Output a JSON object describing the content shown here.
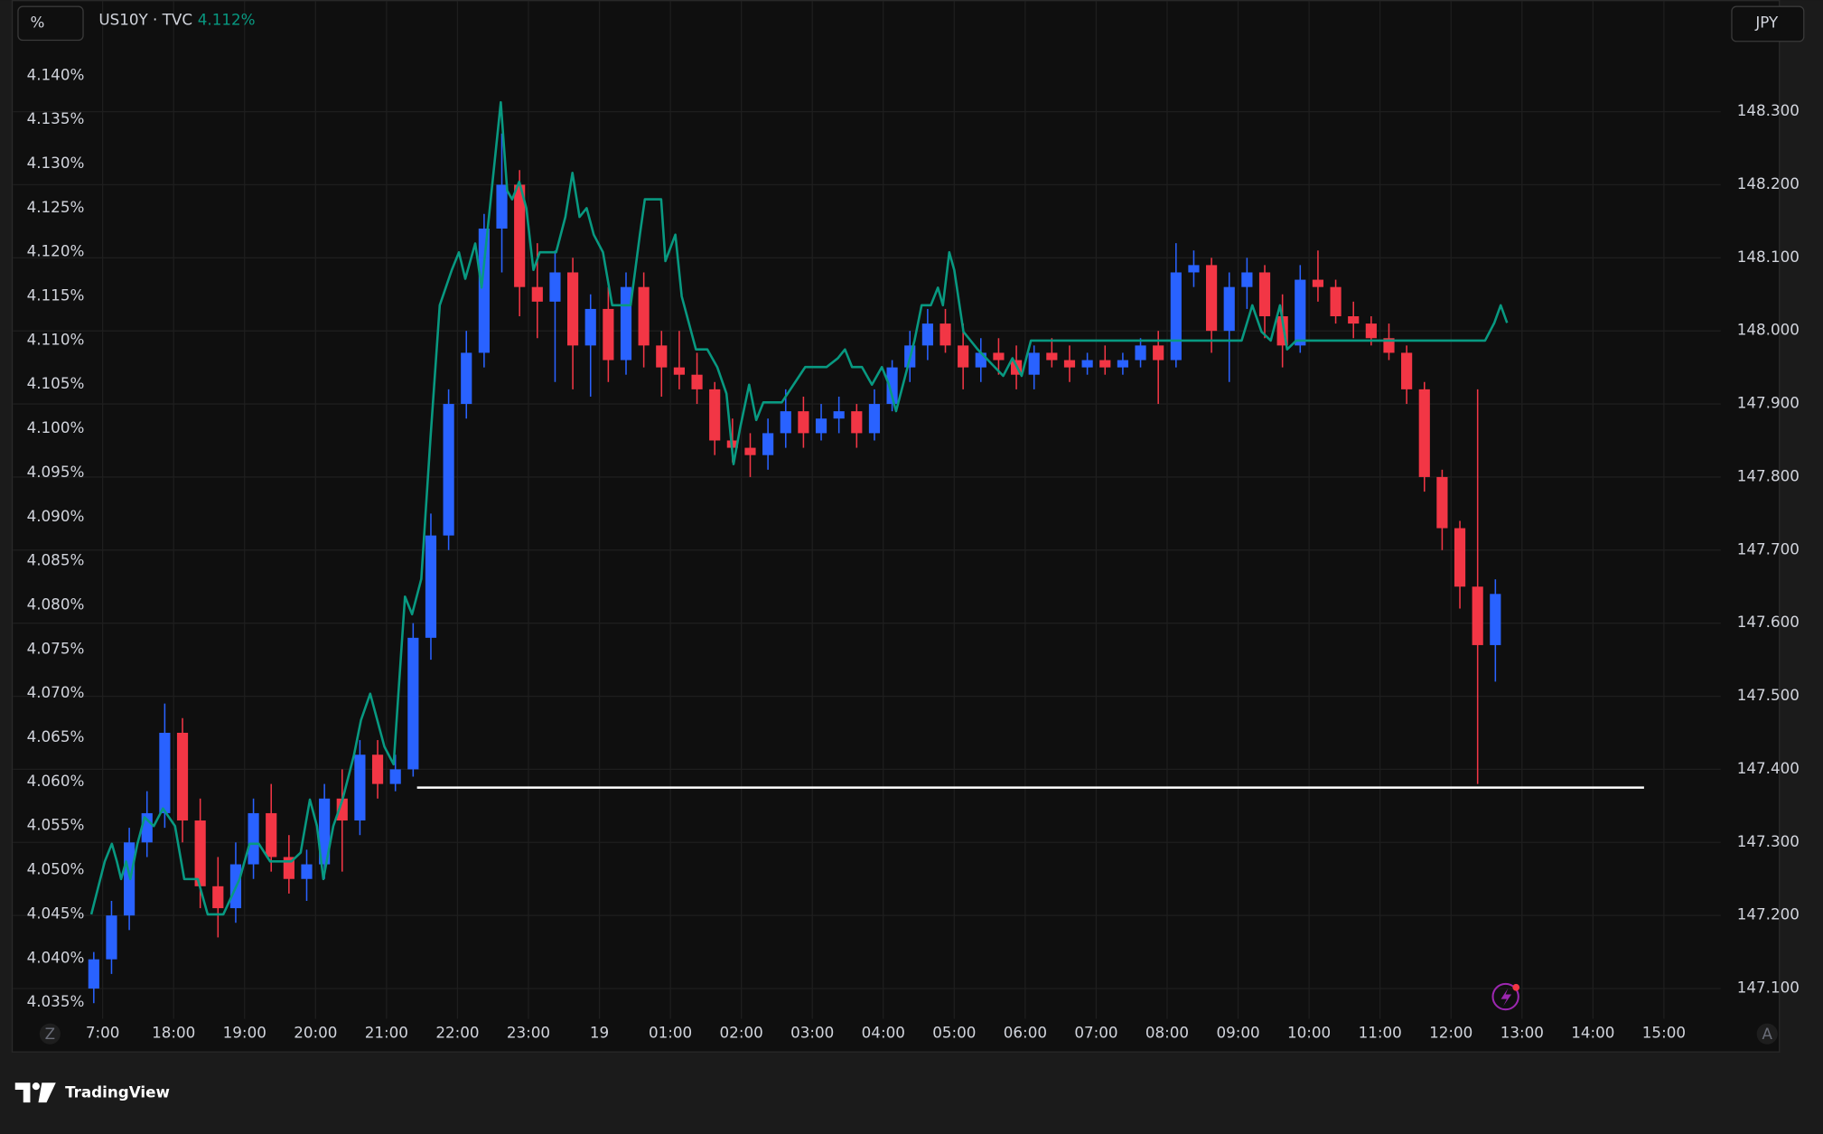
{
  "chart_data": {
    "type": "candlestick",
    "y_unit": "%",
    "y2_unit": "JPY",
    "legend": {
      "text": "US10Y · TVC",
      "value": {
        "value": 4.112,
        "label": "4.112%"
      }
    },
    "grid": true,
    "xlim": [
      -1.25,
      22.8
    ],
    "xticks": [
      {
        "value": 0,
        "label": "7:00"
      },
      {
        "value": 1,
        "label": "18:00"
      },
      {
        "value": 2,
        "label": "19:00"
      },
      {
        "value": 3,
        "label": "20:00"
      },
      {
        "value": 4,
        "label": "21:00"
      },
      {
        "value": 5,
        "label": "22:00"
      },
      {
        "value": 6,
        "label": "23:00"
      },
      {
        "value": 7,
        "label": "19"
      },
      {
        "value": 8,
        "label": "01:00"
      },
      {
        "value": 9,
        "label": "02:00"
      },
      {
        "value": 10,
        "label": "03:00"
      },
      {
        "value": 11,
        "label": "04:00"
      },
      {
        "value": 12,
        "label": "05:00"
      },
      {
        "value": 13,
        "label": "06:00"
      },
      {
        "value": 14,
        "label": "07:00"
      },
      {
        "value": 15,
        "label": "08:00"
      },
      {
        "value": 16,
        "label": "09:00"
      },
      {
        "value": 17,
        "label": "10:00"
      },
      {
        "value": 18,
        "label": "11:00"
      },
      {
        "value": 19,
        "label": "12:00"
      },
      {
        "value": 20,
        "label": "13:00"
      },
      {
        "value": 21,
        "label": "14:00"
      },
      {
        "value": 22,
        "label": "15:00"
      }
    ],
    "ylim": [
      4.0337,
      4.1433
    ],
    "yticks": [
      {
        "value": 4.035,
        "label": "4.035%"
      },
      {
        "value": 4.04,
        "label": "4.040%"
      },
      {
        "value": 4.045,
        "label": "4.045%"
      },
      {
        "value": 4.05,
        "label": "4.050%"
      },
      {
        "value": 4.055,
        "label": "4.055%"
      },
      {
        "value": 4.06,
        "label": "4.060%"
      },
      {
        "value": 4.065,
        "label": "4.065%"
      },
      {
        "value": 4.07,
        "label": "4.070%"
      },
      {
        "value": 4.075,
        "label": "4.075%"
      },
      {
        "value": 4.08,
        "label": "4.080%"
      },
      {
        "value": 4.085,
        "label": "4.085%"
      },
      {
        "value": 4.09,
        "label": "4.090%"
      },
      {
        "value": 4.095,
        "label": "4.095%"
      },
      {
        "value": 4.1,
        "label": "4.100%"
      },
      {
        "value": 4.105,
        "label": "4.105%"
      },
      {
        "value": 4.11,
        "label": "4.110%"
      },
      {
        "value": 4.115,
        "label": "4.115%"
      },
      {
        "value": 4.12,
        "label": "4.120%"
      },
      {
        "value": 4.125,
        "label": "4.125%"
      },
      {
        "value": 4.13,
        "label": "4.130%"
      },
      {
        "value": 4.135,
        "label": "4.135%"
      },
      {
        "value": 4.14,
        "label": "4.140%"
      }
    ],
    "y2lim": [
      147.065,
      148.389
    ],
    "y2ticks": [
      {
        "value": 147.1,
        "label": "147.100"
      },
      {
        "value": 147.2,
        "label": "147.200"
      },
      {
        "value": 147.3,
        "label": "147.300"
      },
      {
        "value": 147.4,
        "label": "147.400"
      },
      {
        "value": 147.5,
        "label": "147.500"
      },
      {
        "value": 147.6,
        "label": "147.600"
      },
      {
        "value": 147.7,
        "label": "147.700"
      },
      {
        "value": 147.8,
        "label": "147.800"
      },
      {
        "value": 147.9,
        "label": "147.900"
      },
      {
        "value": 148.0,
        "label": "148.000"
      },
      {
        "value": 148.1,
        "label": "148.100"
      },
      {
        "value": 148.2,
        "label": "148.200"
      },
      {
        "value": 148.3,
        "label": "148.300"
      }
    ],
    "candles": {
      "axis": "y2",
      "up_color": "#2962ff",
      "down_color": "#f23645",
      "x": [
        -0.125,
        0.125,
        0.375,
        0.625,
        0.875,
        1.125,
        1.375,
        1.625,
        1.875,
        2.125,
        2.375,
        2.625,
        2.875,
        3.125,
        3.375,
        3.625,
        3.875,
        4.125,
        4.375,
        4.625,
        4.875,
        5.125,
        5.375,
        5.625,
        5.875,
        6.125,
        6.375,
        6.625,
        6.875,
        7.125,
        7.375,
        7.625,
        7.875,
        8.125,
        8.375,
        8.625,
        8.875,
        9.125,
        9.375,
        9.625,
        9.875,
        10.125,
        10.375,
        10.625,
        10.875,
        11.125,
        11.375,
        11.625,
        11.875,
        12.125,
        12.375,
        12.625,
        12.875,
        13.125,
        13.375,
        13.625,
        13.875,
        14.125,
        14.375,
        14.625,
        14.875,
        15.125,
        15.375,
        15.625,
        15.875,
        16.125,
        16.375,
        16.625,
        16.875,
        17.125,
        17.375,
        17.625,
        17.875,
        18.125,
        18.375,
        18.625,
        18.875,
        19.125,
        19.375,
        19.625
      ],
      "open": [
        147.1,
        147.14,
        147.2,
        147.3,
        147.34,
        147.45,
        147.33,
        147.24,
        147.21,
        147.27,
        147.34,
        147.28,
        147.25,
        147.27,
        147.36,
        147.33,
        147.42,
        147.38,
        147.4,
        147.58,
        147.72,
        147.9,
        147.97,
        148.14,
        148.2,
        148.06,
        148.04,
        148.08,
        147.98,
        148.03,
        147.96,
        148.06,
        147.98,
        147.95,
        147.94,
        147.92,
        147.85,
        147.84,
        147.83,
        147.86,
        147.89,
        147.86,
        147.88,
        147.89,
        147.86,
        147.9,
        147.95,
        147.98,
        148.01,
        147.98,
        147.95,
        147.97,
        147.96,
        147.94,
        147.97,
        147.96,
        147.95,
        147.96,
        147.95,
        147.96,
        147.98,
        147.96,
        148.08,
        148.09,
        148.0,
        148.06,
        148.08,
        148.02,
        147.98,
        148.07,
        148.06,
        148.02,
        148.01,
        147.99,
        147.97,
        147.92,
        147.8,
        147.73,
        147.65,
        147.57
      ],
      "high": [
        147.15,
        147.22,
        147.32,
        147.37,
        147.49,
        147.47,
        147.36,
        147.28,
        147.3,
        147.36,
        147.38,
        147.31,
        147.29,
        147.38,
        147.4,
        147.44,
        147.44,
        147.42,
        147.6,
        147.75,
        147.92,
        148.0,
        148.16,
        148.27,
        148.22,
        148.12,
        148.11,
        148.1,
        148.05,
        148.06,
        148.08,
        148.08,
        148.0,
        148.0,
        147.97,
        147.93,
        147.88,
        147.86,
        147.88,
        147.92,
        147.91,
        147.9,
        147.91,
        147.9,
        147.92,
        147.96,
        148.0,
        148.03,
        148.03,
        148.01,
        147.99,
        147.99,
        147.98,
        147.98,
        147.99,
        147.98,
        147.97,
        147.98,
        147.97,
        147.99,
        148.0,
        148.12,
        148.11,
        148.1,
        148.08,
        148.1,
        148.09,
        148.05,
        148.09,
        148.11,
        148.07,
        148.04,
        148.02,
        148.01,
        147.98,
        147.93,
        147.81,
        147.74,
        147.92,
        147.66
      ],
      "low": [
        147.08,
        147.12,
        147.18,
        147.28,
        147.32,
        147.3,
        147.21,
        147.17,
        147.19,
        147.25,
        147.26,
        147.23,
        147.22,
        147.25,
        147.26,
        147.31,
        147.36,
        147.37,
        147.39,
        147.55,
        147.7,
        147.88,
        147.95,
        148.08,
        148.02,
        147.99,
        147.93,
        147.92,
        147.91,
        147.93,
        147.94,
        147.95,
        147.91,
        147.92,
        147.9,
        147.83,
        147.82,
        147.8,
        147.81,
        147.84,
        147.84,
        147.85,
        147.86,
        147.84,
        147.85,
        147.89,
        147.93,
        147.96,
        147.97,
        147.92,
        147.93,
        147.94,
        147.92,
        147.92,
        147.95,
        147.93,
        147.94,
        147.94,
        147.94,
        147.95,
        147.9,
        147.95,
        148.06,
        147.97,
        147.93,
        148.03,
        147.99,
        147.95,
        147.97,
        148.04,
        148.01,
        147.99,
        147.98,
        147.96,
        147.9,
        147.78,
        147.7,
        147.62,
        147.38,
        147.52
      ],
      "close": [
        147.14,
        147.2,
        147.3,
        147.34,
        147.45,
        147.33,
        147.24,
        147.21,
        147.27,
        147.34,
        147.28,
        147.25,
        147.27,
        147.36,
        147.33,
        147.42,
        147.38,
        147.4,
        147.58,
        147.72,
        147.9,
        147.97,
        148.14,
        148.2,
        148.06,
        148.04,
        148.08,
        147.98,
        148.03,
        147.96,
        148.06,
        147.98,
        147.95,
        147.94,
        147.92,
        147.85,
        147.84,
        147.83,
        147.86,
        147.89,
        147.86,
        147.88,
        147.89,
        147.86,
        147.9,
        147.95,
        147.98,
        148.01,
        147.98,
        147.95,
        147.97,
        147.96,
        147.94,
        147.97,
        147.96,
        147.95,
        147.96,
        147.95,
        147.96,
        147.98,
        147.96,
        148.08,
        148.09,
        148.0,
        148.06,
        148.08,
        148.02,
        147.98,
        148.07,
        148.06,
        148.02,
        148.01,
        147.99,
        147.97,
        147.92,
        147.8,
        147.73,
        147.65,
        147.57,
        147.64
      ]
    },
    "line": {
      "color": "#089981",
      "x": [
        -0.16,
        0.03,
        0.13,
        0.2,
        0.26,
        0.33,
        0.39,
        0.49,
        0.59,
        0.72,
        0.85,
        1.02,
        1.15,
        1.34,
        1.48,
        1.7,
        1.93,
        2.07,
        2.2,
        2.36,
        2.66,
        2.79,
        2.92,
        3.02,
        3.11,
        3.25,
        3.38,
        3.54,
        3.64,
        3.77,
        3.87,
        3.97,
        4.1,
        4.26,
        4.36,
        4.49,
        4.62,
        4.75,
        4.92,
        5.02,
        5.11,
        5.25,
        5.34,
        5.61,
        5.7,
        5.77,
        5.87,
        5.97,
        6.07,
        6.16,
        6.26,
        6.39,
        6.52,
        6.62,
        6.72,
        6.82,
        6.92,
        7.05,
        7.18,
        7.44,
        7.57,
        7.64,
        7.87,
        7.93,
        8.07,
        8.16,
        8.36,
        8.52,
        8.66,
        8.79,
        8.89,
        8.98,
        9.11,
        9.21,
        9.31,
        9.57,
        9.9,
        10.2,
        10.36,
        10.46,
        10.56,
        10.7,
        10.84,
        10.98,
        11.08,
        11.18,
        11.44,
        11.54,
        11.67,
        11.77,
        11.84,
        11.93,
        12.0,
        12.13,
        12.33,
        12.69,
        12.82,
        12.95,
        13.08,
        13.31,
        16.05,
        16.2,
        16.33,
        16.46,
        16.59,
        16.69,
        16.82,
        19.48,
        19.61,
        19.7,
        19.79
      ],
      "values": [
        4.045,
        4.051,
        4.053,
        4.051,
        4.049,
        4.051,
        4.049,
        4.053,
        4.056,
        4.055,
        4.057,
        4.055,
        4.049,
        4.049,
        4.045,
        4.045,
        4.049,
        4.053,
        4.053,
        4.051,
        4.051,
        4.052,
        4.058,
        4.055,
        4.049,
        4.055,
        4.058,
        4.063,
        4.067,
        4.07,
        4.067,
        4.064,
        4.062,
        4.081,
        4.079,
        4.083,
        4.099,
        4.114,
        4.118,
        4.12,
        4.117,
        4.121,
        4.116,
        4.137,
        4.127,
        4.126,
        4.128,
        4.125,
        4.118,
        4.12,
        4.12,
        4.12,
        4.124,
        4.129,
        4.124,
        4.125,
        4.122,
        4.12,
        4.114,
        4.114,
        4.122,
        4.126,
        4.126,
        4.119,
        4.122,
        4.115,
        4.109,
        4.109,
        4.107,
        4.104,
        4.096,
        4.1,
        4.105,
        4.101,
        4.103,
        4.103,
        4.107,
        4.107,
        4.108,
        4.109,
        4.107,
        4.107,
        4.105,
        4.107,
        4.105,
        4.102,
        4.11,
        4.114,
        4.114,
        4.116,
        4.114,
        4.12,
        4.118,
        4.111,
        4.109,
        4.106,
        4.108,
        4.106,
        4.11,
        4.11,
        4.11,
        4.114,
        4.111,
        4.11,
        4.114,
        4.109,
        4.11,
        4.11,
        4.112,
        4.114,
        4.112
      ]
    },
    "hline": {
      "value": 147.375,
      "x": [
        4.43,
        21.72
      ],
      "color": "#ffffff"
    }
  },
  "ui": {
    "z_button": "Z",
    "a_button": "A",
    "brand": "TradingView"
  }
}
